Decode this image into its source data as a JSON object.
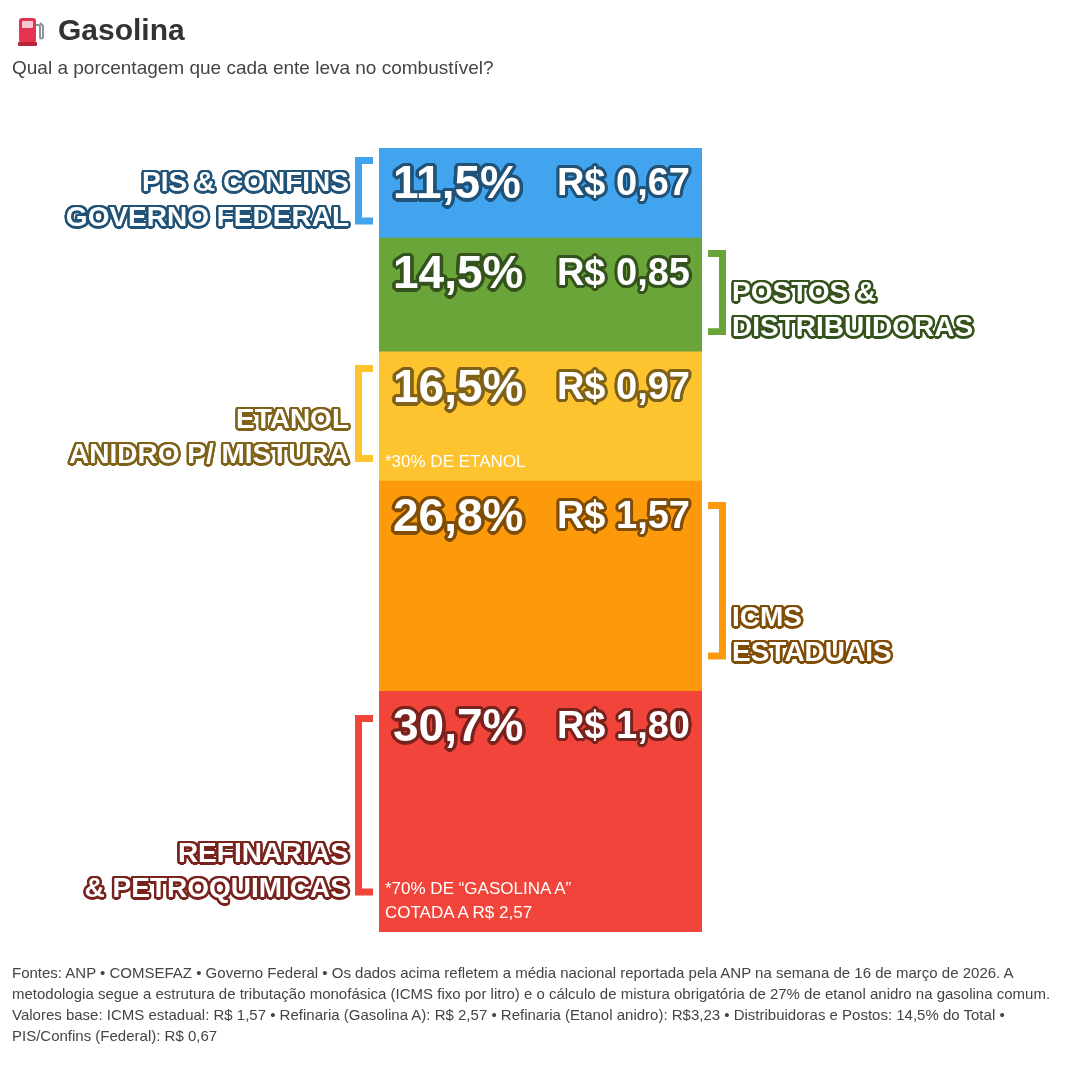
{
  "chart_data": {
    "type": "bar",
    "title": "Gasolina",
    "subtitle": "Qual a porcentagem que cada ente leva no combustível?",
    "categories": [
      null
    ],
    "stacked": true,
    "ylim": [
      0,
      100
    ],
    "tick_labels": false,
    "series": [
      {
        "name": "REFINARIAS\n& PETROQUIMICAS",
        "color": "#f1453b",
        "values": [
          30.7
        ],
        "value_labels": [
          "30,7%"
        ]
      },
      {
        "name": "ICMS\nESTADUAIS",
        "color": "#fd9a0b",
        "values": [
          26.8
        ],
        "value_labels": [
          "26,8%"
        ]
      },
      {
        "name": "ETANOL\nANIDRO P/ MISTURA",
        "color": "#fec430",
        "values": [
          16.5
        ],
        "value_labels": [
          "16,5%"
        ]
      },
      {
        "name": "POSTOS &\nDISTRIBUIDORAS",
        "color": "#6aa539",
        "values": [
          14.5
        ],
        "value_labels": [
          "14,5%"
        ]
      },
      {
        "name": "PIS & CONFINS\nGOVERNO FEDERAL",
        "color": "#42a3ee",
        "values": [
          11.5
        ],
        "value_labels": [
          "11,5%"
        ]
      }
    ],
    "annotations": [
      {
        "text": "R$ 1,80",
        "y": 30.7
      },
      {
        "text": "R$ 1,57",
        "y": 57.5
      },
      {
        "text": "R$ 0,97",
        "y": 74
      },
      {
        "text": "R$ 0,85",
        "y": 88.5
      },
      {
        "text": "R$ 0,67",
        "y": 100
      },
      {
        "text": "*30% DE ETANOL",
        "y": 57.5
      },
      {
        "text": "*70% DE “GASOLINA A”\nCOTADA A R$ 2,57",
        "y": 0
      },
      "Fontes: ANP • COMSEFAZ • Governo Federal • Os dados acima refletem a média nacional reportada pela ANP na semana de 16 de março de 2026. A metodologia segue a estrutura de tributação monofásica (ICMS fixo por litro) e o cálculo de mistura obrigatória de 27% de etanol anidro na gasolina comum.",
      "Valores base: ICMS estadual: R$ 1,57 • Refinaria (Gasolina A): R$ 2,57 • Refinaria (Etanol anidro): R$3,23 • Distribuidoras e Postos: 14,5% do Total • PIS/Confins (Federal): R$ 0,67"
    ]
  }
}
